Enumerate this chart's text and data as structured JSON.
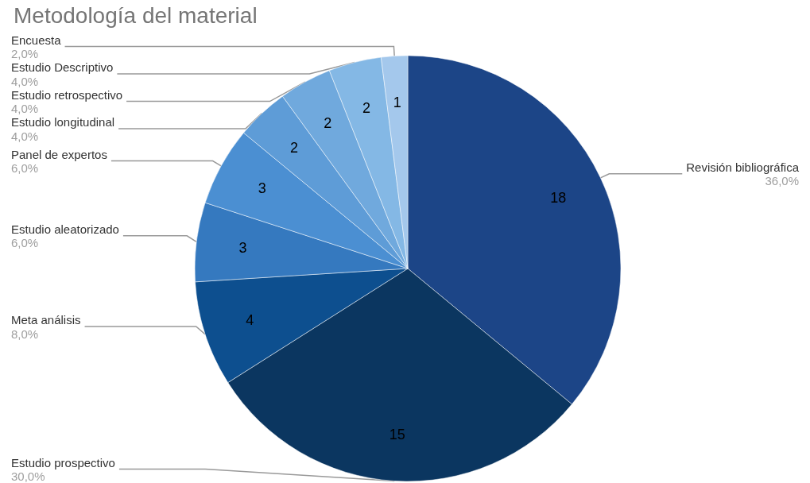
{
  "chart_data": {
    "type": "pie",
    "title": "Metodología del material",
    "categories": [
      "Revisión bibliográfica",
      "Estudio prospectivo",
      "Meta análisis",
      "Estudio aleatorizado",
      "Panel de expertos",
      "Estudio longitudinal",
      "Estudio retrospectivo",
      "Estudio Descriptivo",
      "Encuesta"
    ],
    "values": [
      18,
      15,
      4,
      3,
      3,
      2,
      2,
      2,
      1
    ],
    "colors": [
      "#1c4587",
      "#0b3660",
      "#0d4f8f",
      "#3579bf",
      "#4b8fd2",
      "#5e9cd7",
      "#70a9dd",
      "#84b8e5",
      "#a4c8ec"
    ],
    "annotations": [
      "36,0%",
      "30,0%",
      "8,0%",
      "6,0%",
      "6,0%",
      "4,0%",
      "4,0%",
      "4,0%",
      "2,0%"
    ],
    "value_labels": [
      "18",
      "15",
      "4",
      "3",
      "3",
      "2",
      "2",
      "2",
      "1"
    ],
    "legend": false
  }
}
